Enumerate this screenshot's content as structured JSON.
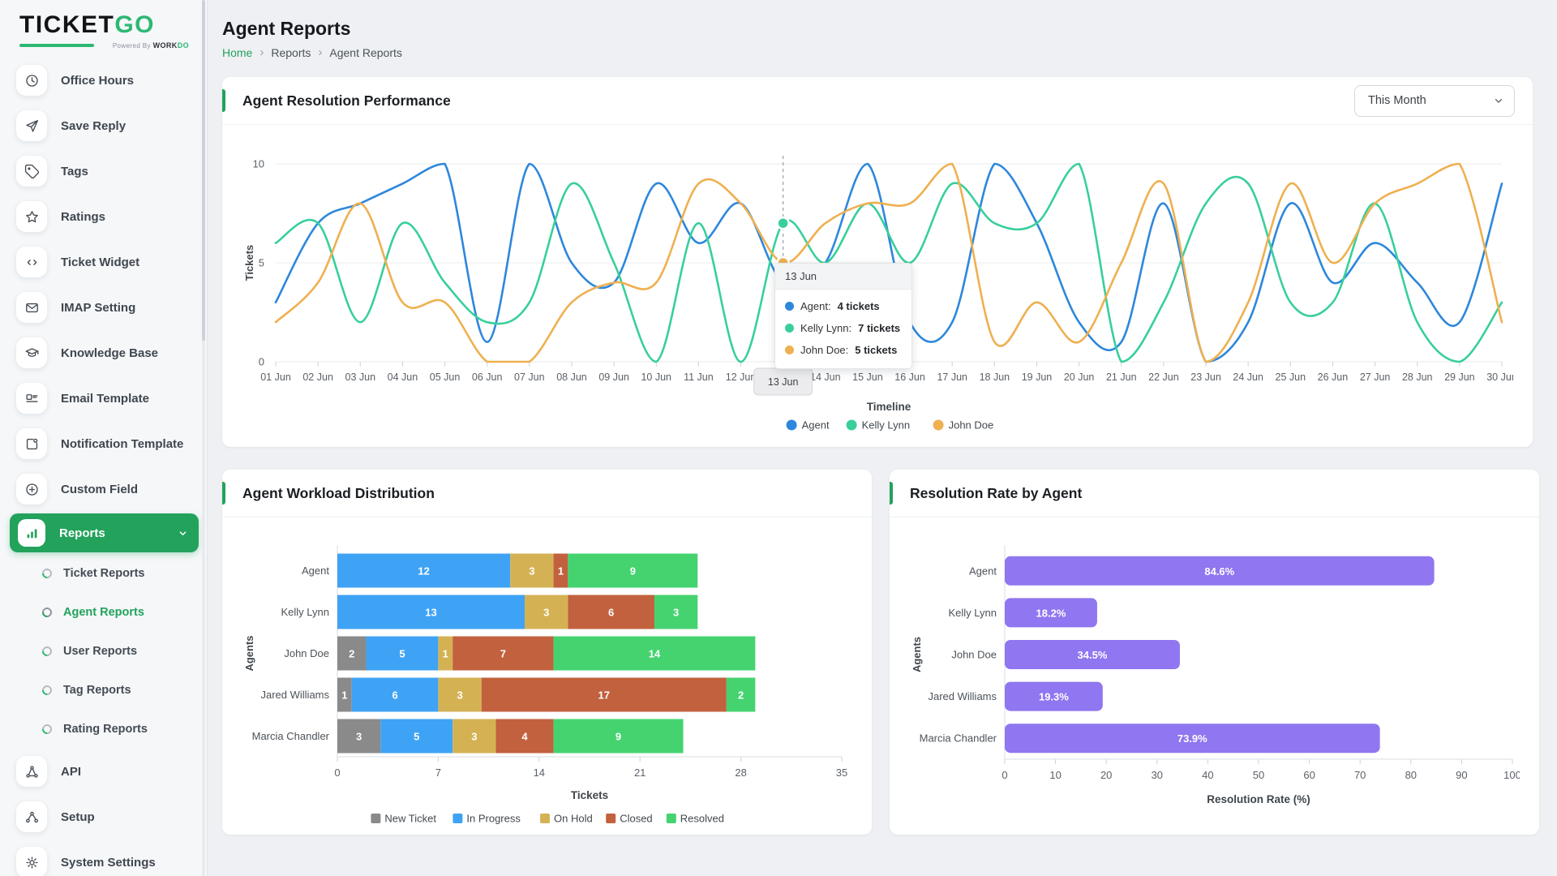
{
  "brand": {
    "primary": "TICKET",
    "accent": "GO",
    "tagline_prefix": "Powered By ",
    "tagline_brand": "WORK",
    "tagline_accent": "DO"
  },
  "sidebar": {
    "items": [
      {
        "label": "Office Hours",
        "icon": "clock-icon"
      },
      {
        "label": "Save Reply",
        "icon": "send-icon"
      },
      {
        "label": "Tags",
        "icon": "tag-icon"
      },
      {
        "label": "Ratings",
        "icon": "star-icon"
      },
      {
        "label": "Ticket Widget",
        "icon": "code-icon"
      },
      {
        "label": "IMAP Setting",
        "icon": "mail-icon"
      },
      {
        "label": "Knowledge Base",
        "icon": "graduation-cap-icon"
      },
      {
        "label": "Email Template",
        "icon": "template-icon"
      },
      {
        "label": "Notification Template",
        "icon": "external-box-icon"
      },
      {
        "label": "Custom Field",
        "icon": "plus-circle-icon"
      },
      {
        "label": "Reports",
        "icon": "bar-chart-icon",
        "active": true,
        "expandable": true
      },
      {
        "label": "Ticket Reports",
        "sub": true
      },
      {
        "label": "Agent Reports",
        "sub": true,
        "active": true
      },
      {
        "label": "User Reports",
        "sub": true
      },
      {
        "label": "Tag Reports",
        "sub": true
      },
      {
        "label": "Rating Reports",
        "sub": true
      },
      {
        "label": "API",
        "icon": "api-icon"
      },
      {
        "label": "Setup",
        "icon": "setup-icon"
      },
      {
        "label": "System Settings",
        "icon": "gear-icon"
      }
    ]
  },
  "header": {
    "title": "Agent Reports",
    "breadcrumb": [
      "Home",
      "Reports",
      "Agent Reports"
    ]
  },
  "cards": {
    "performance": {
      "title": "Agent Resolution Performance",
      "filter_value": "This Month"
    },
    "workload": {
      "title": "Agent Workload Distribution"
    },
    "resolution": {
      "title": "Resolution Rate by Agent"
    }
  },
  "tooltip": {
    "date": "13 Jun",
    "rows": [
      {
        "label": "Agent:",
        "value": "4 tickets",
        "color": "#2d87dc"
      },
      {
        "label": "Kelly Lynn:",
        "value": "7 tickets",
        "color": "#38cf9b"
      },
      {
        "label": "John Doe:",
        "value": "5 tickets",
        "color": "#eeb050"
      }
    ]
  },
  "chart_data": [
    {
      "type": "line",
      "title": "Agent Resolution Performance",
      "x": [
        "01 Jun",
        "02 Jun",
        "03 Jun",
        "04 Jun",
        "05 Jun",
        "06 Jun",
        "07 Jun",
        "08 Jun",
        "09 Jun",
        "10 Jun",
        "11 Jun",
        "12 Jun",
        "13 Jun",
        "14 Jun",
        "15 Jun",
        "16 Jun",
        "17 Jun",
        "18 Jun",
        "19 Jun",
        "20 Jun",
        "21 Jun",
        "22 Jun",
        "23 Jun",
        "24 Jun",
        "25 Jun",
        "26 Jun",
        "27 Jun",
        "28 Jun",
        "29 Jun",
        "30 Jun"
      ],
      "series": [
        {
          "name": "Agent",
          "color": "#2d87dc",
          "values": [
            3,
            7,
            8,
            9,
            10,
            1,
            10,
            5,
            4,
            9,
            6,
            8,
            4,
            5,
            10,
            2,
            2,
            10,
            7,
            2,
            1,
            8,
            0,
            2,
            8,
            4,
            6,
            4,
            2,
            9
          ]
        },
        {
          "name": "Kelly Lynn",
          "color": "#38cf9b",
          "values": [
            6,
            7,
            2,
            7,
            4,
            2,
            3,
            9,
            5,
            0,
            7,
            0,
            7,
            5,
            8,
            5,
            9,
            7,
            7,
            10,
            0,
            3,
            8,
            9,
            3,
            3,
            8,
            2,
            0,
            3
          ]
        },
        {
          "name": "John Doe",
          "color": "#eeb050",
          "values": [
            2,
            4,
            8,
            3,
            3,
            0,
            0,
            3,
            4,
            4,
            9,
            8,
            5,
            7,
            8,
            8,
            10,
            1,
            3,
            1,
            5,
            9,
            0,
            3,
            9,
            5,
            8,
            9,
            10,
            2
          ]
        }
      ],
      "xlabel": "Timeline",
      "ylabel": "Tickets",
      "ylim": [
        0,
        10
      ],
      "yticks": [
        0,
        5,
        10
      ],
      "grid": true,
      "legend_position": "bottom",
      "highlight": {
        "x": "13 Jun",
        "index": 12
      }
    },
    {
      "type": "bar",
      "stacked": true,
      "orientation": "horizontal",
      "title": "Agent Workload Distribution",
      "categories": [
        "Agent",
        "Kelly Lynn",
        "John Doe",
        "Jared Williams",
        "Marcia Chandler"
      ],
      "series": [
        {
          "name": "New Ticket",
          "color": "#8a8a8a",
          "values": [
            0,
            0,
            2,
            1,
            3
          ]
        },
        {
          "name": "In Progress",
          "color": "#3fa3f5",
          "values": [
            12,
            13,
            5,
            6,
            5
          ]
        },
        {
          "name": "On Hold",
          "color": "#d4b254",
          "values": [
            3,
            3,
            1,
            3,
            3
          ]
        },
        {
          "name": "Closed",
          "color": "#c2613d",
          "values": [
            1,
            6,
            7,
            17,
            4
          ]
        },
        {
          "name": "Resolved",
          "color": "#45d370",
          "values": [
            9,
            3,
            14,
            2,
            9
          ]
        }
      ],
      "xlabel": "Tickets",
      "ylabel": "Agents",
      "xlim": [
        0,
        35
      ],
      "xticks": [
        0,
        7,
        14,
        21,
        28,
        35
      ],
      "legend_position": "bottom"
    },
    {
      "type": "bar",
      "orientation": "horizontal",
      "title": "Resolution Rate by Agent",
      "categories": [
        "Agent",
        "Kelly Lynn",
        "John Doe",
        "Jared Williams",
        "Marcia Chandler"
      ],
      "values": [
        84.6,
        18.2,
        34.5,
        19.3,
        73.9
      ],
      "labels": [
        "84.6%",
        "18.2%",
        "34.5%",
        "19.3%",
        "73.9%"
      ],
      "color": "#9076f0",
      "xlabel": "Resolution Rate (%)",
      "ylabel": "Agents",
      "xlim": [
        0,
        100
      ],
      "xticks": [
        0,
        10,
        20,
        30,
        40,
        50,
        60,
        70,
        80,
        90,
        100
      ]
    }
  ]
}
